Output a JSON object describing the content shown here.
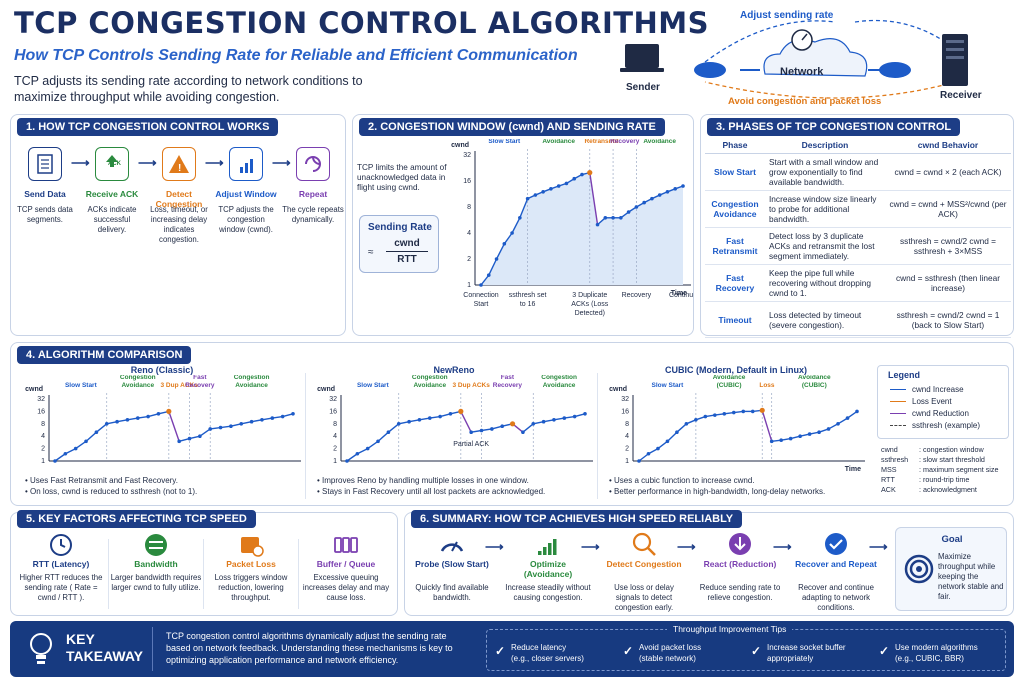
{
  "header": {
    "title": "TCP CONGESTION CONTROL ALGORITHMS",
    "subtitle": "How TCP Controls Sending Rate for Reliable and Efficient Communication",
    "intro": "TCP adjusts its sending rate according to network conditions to maximize throughput while avoiding congestion."
  },
  "network": {
    "top_label": "Adjust sending rate",
    "cloud_label": "Network",
    "sender": "Sender",
    "receiver": "Receiver",
    "bottom_label": "Avoid congestion and packet loss"
  },
  "section1": {
    "title": "1. HOW TCP CONGESTION CONTROL WORKS",
    "steps": [
      {
        "title": "Send Data",
        "desc": "TCP sends data segments.",
        "color": "#1d3d86"
      },
      {
        "title": "Receive ACK",
        "desc": "ACKs indicate successful delivery.",
        "color": "#2a8a3e",
        "icon_text": "ACK"
      },
      {
        "title": "Detect Congestion",
        "desc": "Loss, timeout, or increasing delay indicates congestion.",
        "color": "#e07a1a"
      },
      {
        "title": "Adjust Window",
        "desc": "TCP adjusts the congestion window (cwnd).",
        "color": "#1d5bc8"
      },
      {
        "title": "Repeat",
        "desc": "The cycle repeats dynamically.",
        "color": "#7a3fb0"
      }
    ]
  },
  "section2": {
    "title": "2. CONGESTION WINDOW (cwnd) AND SENDING RATE",
    "desc": "TCP limits the amount of unacknowledged data in flight using cwnd.",
    "rate_title": "Sending Rate",
    "rate_approx": "≈",
    "rate_num": "cwnd",
    "rate_den": "RTT"
  },
  "section3": {
    "title": "3. PHASES OF TCP CONGESTION CONTROL",
    "headers": [
      "Phase",
      "Description",
      "cwnd Behavior"
    ],
    "rows": [
      {
        "phase": "Slow Start",
        "desc": "Start with a small window and grow exponentially to find available bandwidth.",
        "behavior": "cwnd = cwnd × 2 (each ACK)"
      },
      {
        "phase": "Congestion Avoidance",
        "desc": "Increase window size linearly to probe for additional bandwidth.",
        "behavior": "cwnd = cwnd + MSS²/cwnd (per ACK)"
      },
      {
        "phase": "Fast Retransmit",
        "desc": "Detect loss by 3 duplicate ACKs and retransmit the lost segment immediately.",
        "behavior": "ssthresh = cwnd/2 cwnd = ssthresh + 3×MSS"
      },
      {
        "phase": "Fast Recovery",
        "desc": "Keep the pipe full while recovering without dropping cwnd to 1.",
        "behavior": "cwnd = ssthresh (then linear increase)"
      },
      {
        "phase": "Timeout",
        "desc": "Loss detected by timeout (severe congestion).",
        "behavior": "ssthresh = cwnd/2 cwnd = 1 (back to Slow Start)"
      }
    ]
  },
  "section4": {
    "title": "4. ALGORITHM COMPARISON",
    "reno_title": "Reno (Classic)",
    "newreno_title": "NewReno",
    "cubic_title": "CUBIC (Modern, Default in Linux)",
    "reno_bullets": [
      "Uses Fast Retransmit and Fast Recovery.",
      "On loss, cwnd is reduced to ssthresh (not to 1)."
    ],
    "newreno_bullets": [
      "Improves Reno by handling multiple losses in one window.",
      "Stays in Fast Recovery until all lost packets are acknowledged."
    ],
    "cubic_bullets": [
      "Uses a cubic function to increase cwnd.",
      "Better performance in high-bandwidth, long-delay networks."
    ],
    "legend_title": "Legend",
    "legend": [
      {
        "label": "cwnd Increase",
        "color": "#1d5bc8"
      },
      {
        "label": "Loss Event",
        "color": "#e07a1a"
      },
      {
        "label": "cwnd Reduction",
        "color": "#7a3fb0"
      },
      {
        "label": "ssthresh (example)",
        "color": "#444444"
      }
    ],
    "abbr": [
      {
        "k": "cwnd",
        "v": ": congestion window"
      },
      {
        "k": "ssthresh",
        "v": ": slow start threshold"
      },
      {
        "k": "MSS",
        "v": ": maximum segment size"
      },
      {
        "k": "RTT",
        "v": ": round-trip time"
      },
      {
        "k": "ACK",
        "v": ": acknowledgment"
      }
    ]
  },
  "section5": {
    "title": "5. KEY FACTORS AFFECTING TCP SPEED",
    "factors": [
      {
        "title": "RTT (Latency)",
        "desc": "Higher RTT reduces the sending rate ( Rate = cwnd / RTT ).",
        "color": "#1d3d86"
      },
      {
        "title": "Bandwidth",
        "desc": "Larger bandwidth requires larger cwnd to fully utilize.",
        "color": "#2a8a3e"
      },
      {
        "title": "Packet Loss",
        "desc": "Loss triggers window reduction, lowering throughput.",
        "color": "#e07a1a"
      },
      {
        "title": "Buffer / Queue",
        "desc": "Excessive queuing increases delay and may cause loss.",
        "color": "#7a3fb0"
      }
    ]
  },
  "section6": {
    "title": "6. SUMMARY: HOW TCP ACHIEVES HIGH SPEED RELIABLY",
    "steps": [
      {
        "title": "Probe (Slow Start)",
        "desc": "Quickly find available bandwidth.",
        "color": "#1d3d86"
      },
      {
        "title": "Optimize (Avoidance)",
        "desc": "Increase steadily without causing congestion.",
        "color": "#2a8a3e"
      },
      {
        "title": "Detect Congestion",
        "desc": "Use loss or delay signals to detect congestion early.",
        "color": "#e07a1a"
      },
      {
        "title": "React (Reduction)",
        "desc": "Reduce sending rate to relieve congestion.",
        "color": "#7a3fb0"
      },
      {
        "title": "Recover and Repeat",
        "desc": "Recover and continue adapting to network conditions.",
        "color": "#1d5bc8"
      }
    ],
    "goal_title": "Goal",
    "goal_desc": "Maximize throughput while keeping the network stable and fair."
  },
  "footer": {
    "key": "KEY",
    "takeaway": "TAKEAWAY",
    "text": "TCP congestion control algorithms dynamically adjust the sending rate based on network feedback. Understanding these mechanisms is key to optimizing application performance and network efficiency.",
    "tips_title": "Throughput Improvement Tips",
    "tips": [
      {
        "a": "Reduce latency",
        "b": "(e.g., closer servers)"
      },
      {
        "a": "Avoid packet loss",
        "b": "(stable network)"
      },
      {
        "a": "Increase socket buffer",
        "b": "appropriately"
      },
      {
        "a": "Use modern algorithms",
        "b": "(e.g., CUBIC, BBR)"
      }
    ]
  },
  "chart_data": [
    {
      "type": "line",
      "title": "",
      "ylabel": "cwnd",
      "xlabel": "Time",
      "yticks": [
        "1",
        "2",
        "4",
        "8",
        "16",
        "32"
      ],
      "x_labels": [
        "Connection Start",
        "ssthresh set to 16",
        "3 Duplicate ACKs (Loss Detected)",
        "Recovery",
        "Continue"
      ],
      "phases": [
        "Slow Start",
        "Congestion Avoidance",
        "Fast Retransmit",
        "Fast Recovery",
        "Congestion Avoidance"
      ],
      "series": [
        {
          "values": [
            1,
            1.3,
            2,
            3,
            4,
            6,
            10,
            11,
            12,
            13,
            14,
            15,
            17,
            19,
            20,
            5,
            6,
            6,
            6,
            7,
            8,
            9,
            10,
            11,
            12,
            13,
            14
          ]
        }
      ]
    },
    {
      "type": "line",
      "title": "Reno (Classic)",
      "ylabel": "cwnd",
      "xlabel": "",
      "yticks": [
        "1",
        "2",
        "4",
        "8",
        "16",
        "32"
      ],
      "phases": [
        "Slow Start",
        "Congestion Avoidance",
        "3 Dup ACKs",
        "Fast Recovery",
        "Congestion Avoidance"
      ],
      "series": [
        {
          "values": [
            1,
            1.5,
            2,
            3,
            5,
            8,
            9,
            10,
            11,
            12,
            14,
            16,
            3,
            3.5,
            4,
            6,
            6.5,
            7,
            8,
            9,
            10,
            11,
            12,
            14
          ]
        }
      ]
    },
    {
      "type": "line",
      "title": "NewReno",
      "ylabel": "cwnd",
      "xlabel": "",
      "yticks": [
        "1",
        "2",
        "4",
        "8",
        "16",
        "32"
      ],
      "phases": [
        "Slow Start",
        "Congestion Avoidance",
        "3 Dup ACKs",
        "Fast Recovery",
        "Congestion Avoidance"
      ],
      "annotation": "Partial ACK",
      "series": [
        {
          "values": [
            1,
            1.5,
            2,
            3,
            5,
            8,
            9,
            10,
            11,
            12,
            14,
            16,
            5,
            5.5,
            6,
            7,
            8,
            5,
            8,
            9,
            10,
            11,
            12,
            14
          ]
        }
      ]
    },
    {
      "type": "line",
      "title": "CUBIC (Modern, Default in Linux)",
      "ylabel": "cwnd",
      "xlabel": "Time",
      "yticks": [
        "1",
        "2",
        "4",
        "8",
        "16",
        "32"
      ],
      "phases": [
        "Slow Start",
        "Congestion Avoidance (CUBIC)",
        "Loss",
        "Congestion Avoidance (CUBIC)"
      ],
      "series": [
        {
          "values": [
            1,
            1.5,
            2,
            3,
            5,
            8,
            10,
            12,
            13,
            14,
            15,
            16,
            16,
            17,
            3,
            3.2,
            3.5,
            4,
            4.5,
            5,
            6,
            8,
            11,
            16
          ]
        }
      ]
    }
  ]
}
